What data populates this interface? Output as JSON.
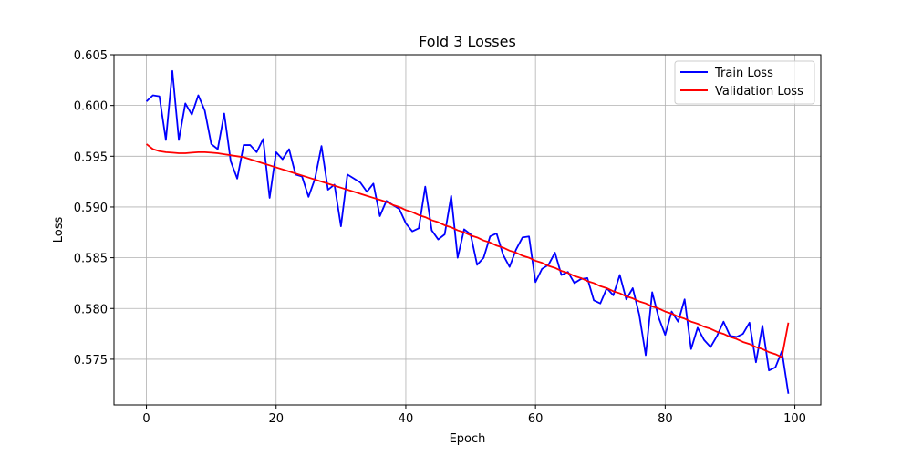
{
  "chart_data": {
    "type": "line",
    "title": "Fold 3 Losses",
    "xlabel": "Epoch",
    "ylabel": "Loss",
    "xlim": [
      -5,
      104
    ],
    "ylim": [
      0.5705,
      0.605
    ],
    "xticks": [
      "0",
      "20",
      "40",
      "60",
      "80",
      "100"
    ],
    "xtick_values": [
      0,
      20,
      40,
      60,
      80,
      100
    ],
    "yticks": [
      "0.575",
      "0.580",
      "0.585",
      "0.590",
      "0.595",
      "0.600",
      "0.605"
    ],
    "ytick_values": [
      0.575,
      0.58,
      0.585,
      0.59,
      0.595,
      0.6,
      0.605
    ],
    "grid": true,
    "legend_position": "top-right",
    "x": [
      0,
      1,
      2,
      3,
      4,
      5,
      6,
      7,
      8,
      9,
      10,
      11,
      12,
      13,
      14,
      15,
      16,
      17,
      18,
      19,
      20,
      21,
      22,
      23,
      24,
      25,
      26,
      27,
      28,
      29,
      30,
      31,
      32,
      33,
      34,
      35,
      36,
      37,
      38,
      39,
      40,
      41,
      42,
      43,
      44,
      45,
      46,
      47,
      48,
      49,
      50,
      51,
      52,
      53,
      54,
      55,
      56,
      57,
      58,
      59,
      60,
      61,
      62,
      63,
      64,
      65,
      66,
      67,
      68,
      69,
      70,
      71,
      72,
      73,
      74,
      75,
      76,
      77,
      78,
      79,
      80,
      81,
      82,
      83,
      84,
      85,
      86,
      87,
      88,
      89,
      90,
      91,
      92,
      93,
      94,
      95,
      96,
      97,
      98,
      99
    ],
    "series": [
      {
        "name": "Train Loss",
        "color": "#0000ff",
        "values": [
          0.6004,
          0.601,
          0.6009,
          0.5966,
          0.6034,
          0.5966,
          0.6002,
          0.5991,
          0.601,
          0.5995,
          0.5962,
          0.5957,
          0.5992,
          0.5945,
          0.5928,
          0.5961,
          0.5961,
          0.5954,
          0.5967,
          0.5909,
          0.5954,
          0.5947,
          0.5957,
          0.5932,
          0.593,
          0.591,
          0.5928,
          0.596,
          0.5917,
          0.5922,
          0.5881,
          0.5932,
          0.5928,
          0.5924,
          0.5915,
          0.5923,
          0.5891,
          0.5906,
          0.5902,
          0.5898,
          0.5884,
          0.5876,
          0.5879,
          0.592,
          0.5877,
          0.5868,
          0.5873,
          0.5911,
          0.585,
          0.5878,
          0.5873,
          0.5843,
          0.585,
          0.5871,
          0.5874,
          0.5853,
          0.5841,
          0.5858,
          0.587,
          0.5871,
          0.5826,
          0.5839,
          0.5843,
          0.5855,
          0.5833,
          0.5836,
          0.5825,
          0.5829,
          0.583,
          0.5808,
          0.5805,
          0.582,
          0.5813,
          0.5833,
          0.5809,
          0.582,
          0.5794,
          0.5754,
          0.5816,
          0.5791,
          0.5774,
          0.5797,
          0.5787,
          0.5809,
          0.576,
          0.5781,
          0.5769,
          0.5762,
          0.5773,
          0.5787,
          0.5773,
          0.5772,
          0.5775,
          0.5786,
          0.5747,
          0.5783,
          0.5739,
          0.5742,
          0.5758,
          0.5716
        ]
      },
      {
        "name": "Validation Loss",
        "color": "#ff0000",
        "values": [
          0.5962,
          0.5957,
          0.5955,
          0.5954,
          0.59535,
          0.5953,
          0.5953,
          0.59535,
          0.5954,
          0.5954,
          0.59535,
          0.5953,
          0.5952,
          0.5951,
          0.595,
          0.5949,
          0.5947,
          0.5945,
          0.5943,
          0.5941,
          0.5939,
          0.5937,
          0.5935,
          0.5933,
          0.5931,
          0.5929,
          0.5927,
          0.5925,
          0.5923,
          0.5921,
          0.5919,
          0.5917,
          0.5915,
          0.5913,
          0.5911,
          0.5909,
          0.5907,
          0.5905,
          0.5902,
          0.59,
          0.5897,
          0.5895,
          0.5892,
          0.589,
          0.5887,
          0.5885,
          0.5882,
          0.588,
          0.5877,
          0.5875,
          0.5872,
          0.587,
          0.5867,
          0.5865,
          0.5862,
          0.586,
          0.5857,
          0.5855,
          0.5852,
          0.585,
          0.5847,
          0.5845,
          0.5842,
          0.584,
          0.5837,
          0.5835,
          0.5832,
          0.583,
          0.5827,
          0.5825,
          0.5822,
          0.582,
          0.5817,
          0.5815,
          0.5812,
          0.581,
          0.5807,
          0.5805,
          0.5802,
          0.58,
          0.5797,
          0.5795,
          0.5792,
          0.579,
          0.5787,
          0.5785,
          0.5782,
          0.578,
          0.5777,
          0.5775,
          0.5772,
          0.577,
          0.5767,
          0.5765,
          0.5762,
          0.576,
          0.5757,
          0.5755,
          0.5752,
          0.5786
        ]
      }
    ]
  }
}
